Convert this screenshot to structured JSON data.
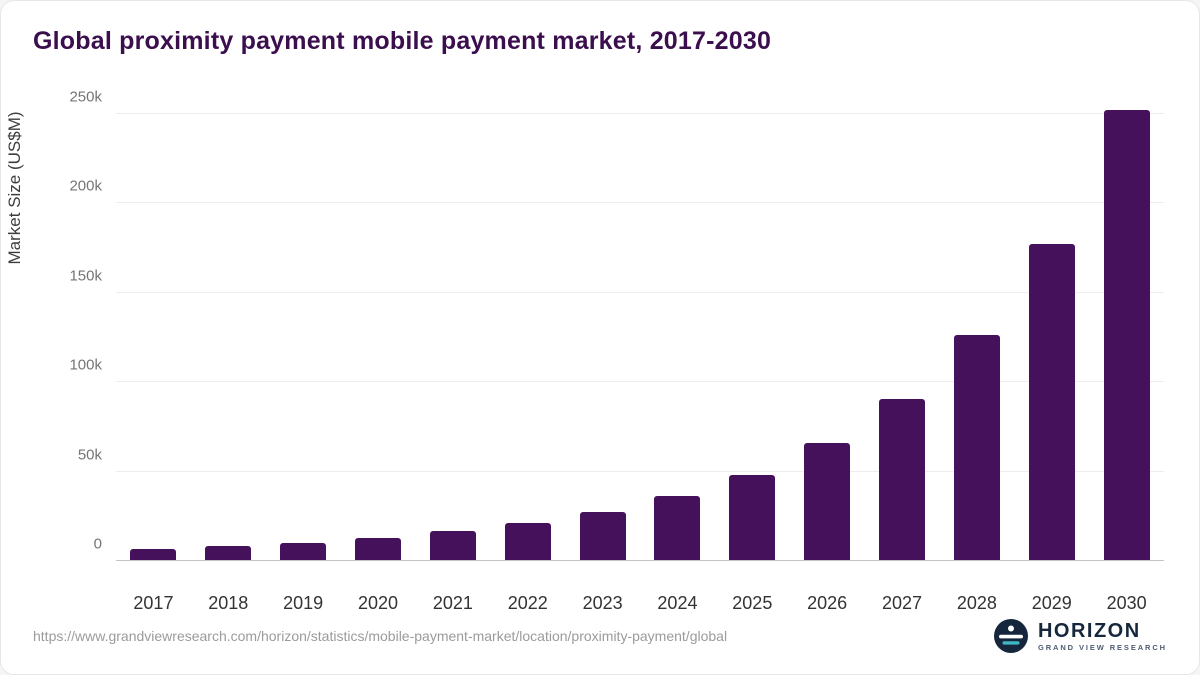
{
  "title": "Global proximity payment mobile payment market, 2017-2030",
  "colors": {
    "bar": "#45115a",
    "title": "#3b0e4e",
    "logo_navy": "#16263c",
    "logo_teal": "#3db7c6"
  },
  "footer": {
    "source_url": "https://www.grandviewresearch.com/horizon/statistics/mobile-payment-market/location/proximity-payment/global",
    "logo_title": "HORIZON",
    "logo_subtitle": "GRAND VIEW RESEARCH",
    "logo_icon": "horizon-globe-icon"
  },
  "chart_data": {
    "type": "bar",
    "title": "Global proximity payment mobile payment market, 2017-2030",
    "xlabel": "",
    "ylabel": "Market Size (US$M)",
    "categories": [
      "2017",
      "2018",
      "2019",
      "2020",
      "2021",
      "2022",
      "2023",
      "2024",
      "2025",
      "2026",
      "2027",
      "2028",
      "2029",
      "2030"
    ],
    "values": [
      6500,
      8200,
      10200,
      13000,
      16800,
      21500,
      27600,
      36200,
      48300,
      66100,
      90800,
      126200,
      177400,
      252000
    ],
    "ylim": [
      0,
      250000
    ],
    "yticks": [
      {
        "value": 0,
        "label": "0"
      },
      {
        "value": 50000,
        "label": "50k"
      },
      {
        "value": 100000,
        "label": "100k"
      },
      {
        "value": 150000,
        "label": "150k"
      },
      {
        "value": 200000,
        "label": "200k"
      },
      {
        "value": 250000,
        "label": "250k"
      }
    ],
    "grid": "horizontal",
    "legend": "none",
    "bar_color": "#45115a"
  }
}
